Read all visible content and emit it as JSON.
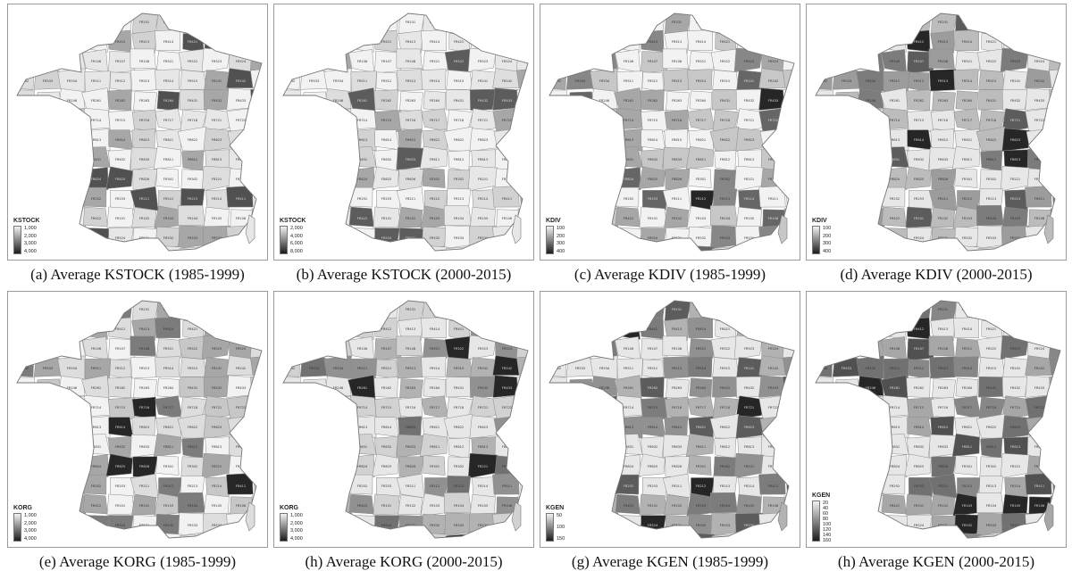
{
  "panels": [
    {
      "caption": "(a) Average KSTOCK (1985-1999)",
      "legend_title": "KSTOCK",
      "legend_ticks": [
        "1,000",
        "2,000",
        "3,000",
        "4,000"
      ],
      "levels": [
        0.0,
        0.05,
        0.1,
        0.15,
        0.35,
        0.75
      ]
    },
    {
      "caption": "(b) Average KSTOCK (2000-2015)",
      "legend_title": "KSTOCK",
      "legend_ticks": [
        "2,000",
        "4,000",
        "6,000",
        "8,000"
      ],
      "levels": [
        0.0,
        0.05,
        0.1,
        0.15,
        0.35,
        0.7
      ]
    },
    {
      "caption": "(c) Average KDIV (1985-1999)",
      "legend_title": "KDIV",
      "legend_ticks": [
        "100",
        "200",
        "300",
        "400"
      ],
      "levels": [
        0.0,
        0.2,
        0.35,
        0.5,
        0.65,
        0.95
      ]
    },
    {
      "caption": "(d) Average KDIV (2000-2015)",
      "legend_title": "KDIV",
      "legend_ticks": [
        "100",
        "200",
        "300",
        "400"
      ],
      "levels": [
        0.05,
        0.25,
        0.4,
        0.55,
        0.7,
        0.95
      ]
    },
    {
      "caption": "(e) Average KORG (1985-1999)",
      "legend_title": "KORG",
      "legend_ticks": [
        "1,000",
        "2,000",
        "3,000",
        "4,000"
      ],
      "levels": [
        0.0,
        0.1,
        0.2,
        0.35,
        0.55,
        0.95
      ]
    },
    {
      "caption": "(h) Average KORG (2000-2015)",
      "legend_title": "KORG",
      "legend_ticks": [
        "1,000",
        "2,000",
        "3,000",
        "4,000"
      ],
      "levels": [
        0.05,
        0.15,
        0.3,
        0.45,
        0.6,
        0.95
      ]
    },
    {
      "caption": "(g) Average KGEN (1985-1999)",
      "legend_title": "KGEN",
      "legend_ticks": [
        "50",
        "100",
        "150"
      ],
      "levels": [
        0.05,
        0.3,
        0.45,
        0.55,
        0.7,
        0.95
      ]
    },
    {
      "caption": "(h) Average KGEN (2000-2015)",
      "legend_title": "KGEN",
      "legend_ticks": [
        "20",
        "40",
        "60",
        "80",
        "100",
        "120",
        "140",
        "160"
      ],
      "levels": [
        0.05,
        0.35,
        0.5,
        0.6,
        0.75,
        0.95
      ]
    }
  ],
  "region_codes": [
    "FR301",
    "FR302",
    "FR221",
    "FR222",
    "FR223",
    "FR231",
    "FR232",
    "FR251",
    "FR252",
    "FR253",
    "FR211",
    "FR212",
    "FR213",
    "FR214",
    "FR411",
    "FR412",
    "FR413",
    "FR414",
    "FR421",
    "FR422",
    "FR101",
    "FR102",
    "FR103",
    "FR104",
    "FR105",
    "FR106",
    "FR107",
    "FR108",
    "FR521",
    "FR522",
    "FR523",
    "FR524",
    "FR531",
    "FR532",
    "FR533",
    "FR534",
    "FR511",
    "FR512",
    "FR513",
    "FR514",
    "FR515",
    "FR241",
    "FR242",
    "FR243",
    "FR244",
    "FR245",
    "FR246",
    "FR261",
    "FR262",
    "FR263",
    "FR264",
    "FR431",
    "FR432",
    "FR433",
    "FR434",
    "FR711",
    "FR712",
    "FR713",
    "FR714",
    "FR715",
    "FR716",
    "FR717",
    "FR718",
    "FR721",
    "FR722",
    "FR723",
    "FR724",
    "FR611",
    "FR612",
    "FR613",
    "FR614",
    "FR615",
    "FR621",
    "FR622",
    "FR623",
    "FR624",
    "FR625",
    "FR626",
    "FR627",
    "FR628",
    "FR631",
    "FR632",
    "FR633",
    "FR811",
    "FR812",
    "FR813",
    "FR814",
    "FR815",
    "FR821",
    "FR822",
    "FR823",
    "FR824",
    "FR825",
    "FR826"
  ]
}
